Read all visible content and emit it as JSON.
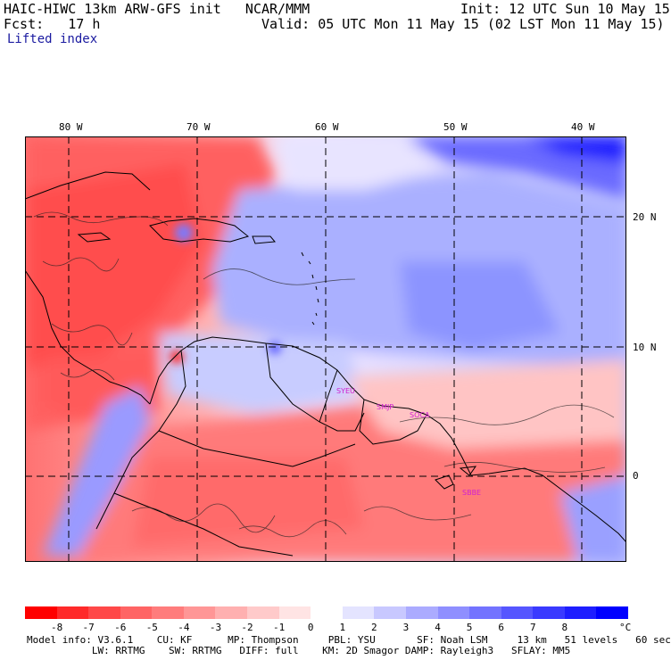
{
  "header": {
    "line1_left": "HAIC-HIWC 13km ARW-GFS init   NCAR/MMM",
    "line1_right": "Init: 12 UTC Sun 10 May 15",
    "line2_left": "Fcst:   17 h",
    "line2_right": "Valid: 05 UTC Mon 11 May 15 (02 LST Mon 11 May 15)",
    "field": "Lifted index"
  },
  "axes": {
    "lon_labels": [
      "80 W",
      "70 W",
      "60 W",
      "50 W",
      "40 W"
    ],
    "lat_labels": [
      "20 N",
      "10 N",
      "0"
    ]
  },
  "stations": [
    "SYEU",
    "SMJP",
    "SOCA",
    "SBBE"
  ],
  "colorbar": {
    "ticks": [
      "-8",
      "-7",
      "-6",
      "-5",
      "-4",
      "-3",
      "-2",
      "-1",
      "0",
      "1",
      "2",
      "3",
      "4",
      "5",
      "6",
      "7",
      "8"
    ],
    "unit": "°C",
    "colors": [
      "#ff0000",
      "#ff2a2a",
      "#ff4848",
      "#ff6464",
      "#ff7c7c",
      "#ff9696",
      "#ffb0b0",
      "#ffcaca",
      "#ffe4e4",
      "#ffffff",
      "#e4e4ff",
      "#c8c8ff",
      "#ababff",
      "#8f8fff",
      "#7373ff",
      "#5656ff",
      "#3a3aff",
      "#1e1eff",
      "#0000ff"
    ]
  },
  "footer": {
    "line1": "Model info: V3.6.1    CU: KF      MP: Thompson     PBL: YSU       SF: Noah LSM     13 km   51 levels   60 sec",
    "line2": "           LW: RRTMG    SW: RRTMG   DIFF: full    KM: 2D Smagor DAMP: Rayleigh3   SFLAY: MM5"
  }
}
